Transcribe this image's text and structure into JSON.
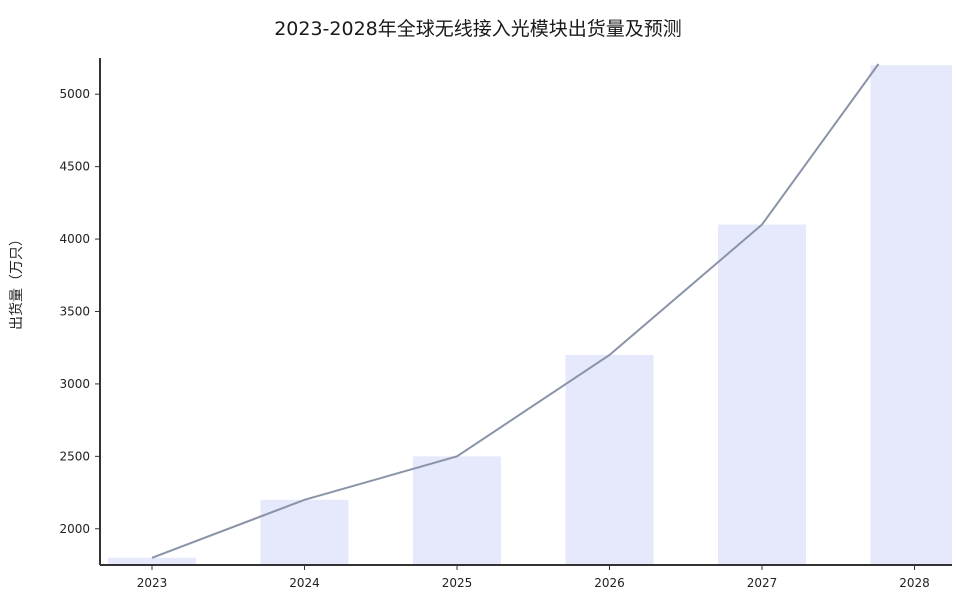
{
  "chart_data": {
    "type": "bar",
    "title": "2023-2028年全球无线接入光模块出货量及预测",
    "xlabel": "",
    "ylabel": "出货量（万只）",
    "categories": [
      "2023",
      "2024",
      "2025",
      "2026",
      "2027",
      "2028"
    ],
    "series": [
      {
        "type": "bar",
        "values": [
          1800,
          2200,
          2500,
          3200,
          4100,
          5200
        ],
        "color": "#e6e8fb"
      },
      {
        "type": "line",
        "values": [
          1800,
          2200,
          2500,
          3200,
          4100,
          5200
        ],
        "color": "#8a93a8"
      }
    ],
    "ylim": [
      1750,
      5250
    ],
    "yticks": [
      2000,
      2500,
      3000,
      3500,
      4000,
      4500,
      5000
    ],
    "grid": false
  }
}
